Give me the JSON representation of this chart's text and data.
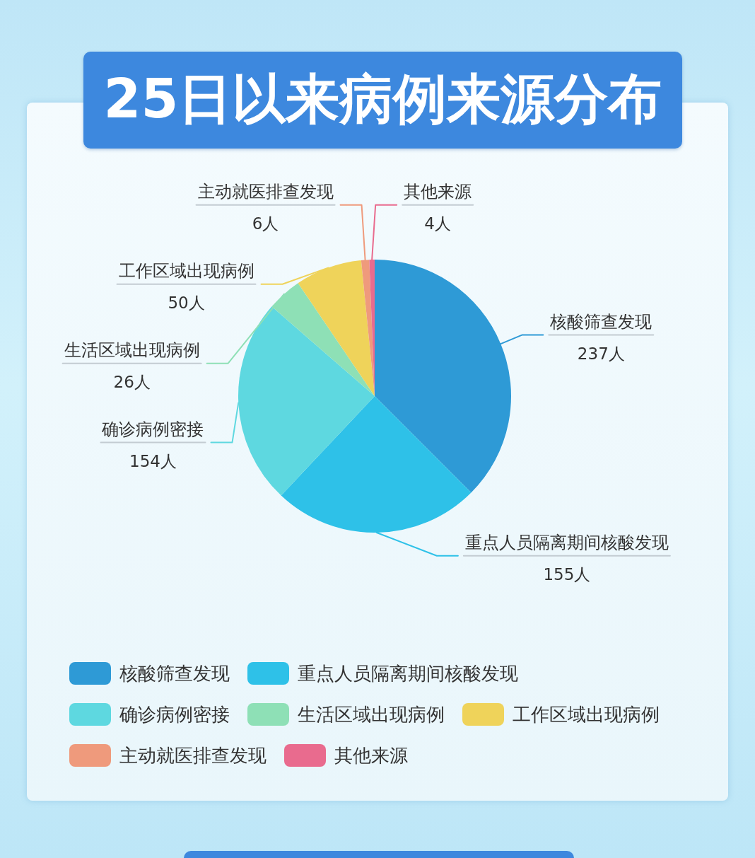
{
  "chart_data": {
    "type": "pie",
    "title": "25日以来病例来源分布",
    "categories": [
      "核酸筛查发现",
      "重点人员隔离期间核酸发现",
      "确诊病例密接",
      "生活区域出现病例",
      "工作区域出现病例",
      "主动就医排查发现",
      "其他来源"
    ],
    "values": [
      237,
      155,
      154,
      26,
      50,
      6,
      4
    ],
    "value_labels": [
      "237人",
      "155人",
      "154人",
      "26人",
      "50人",
      "6人",
      "4人"
    ],
    "colors": [
      "#2e9ad6",
      "#2ec1e8",
      "#5ed8e0",
      "#8ee0b6",
      "#efd35a",
      "#ef9a7c",
      "#e96b8e"
    ],
    "legend": "bottom"
  }
}
